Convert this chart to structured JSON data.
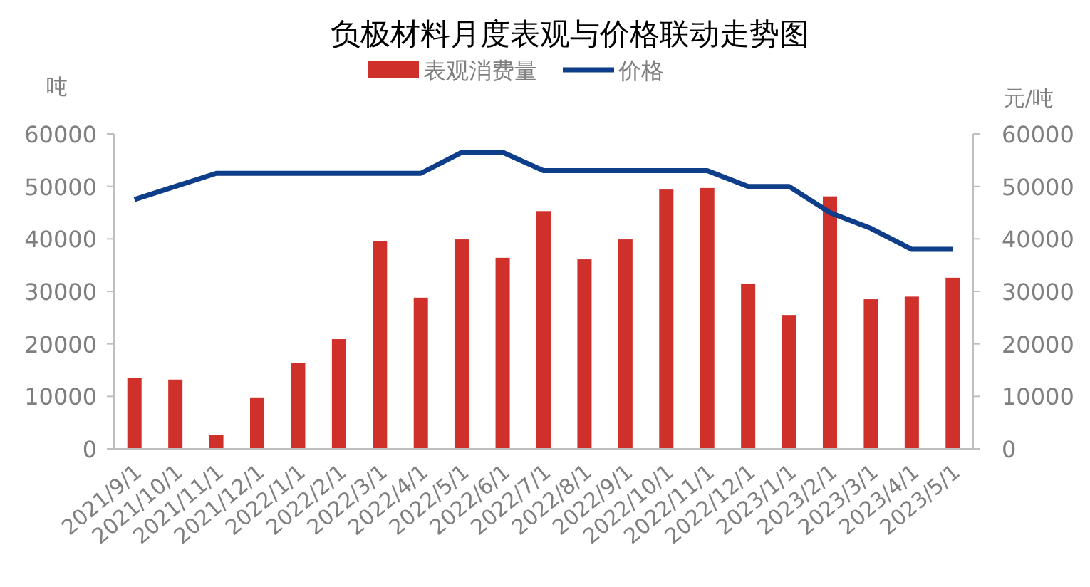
{
  "chart_data": {
    "type": "bar",
    "title": "负极材料月度表观与价格联动走势图",
    "ylabel": "吨",
    "y2label": "元/吨",
    "categories": [
      "2021/9/1",
      "2021/10/1",
      "2021/11/1",
      "2021/12/1",
      "2022/1/1",
      "2022/2/1",
      "2022/3/1",
      "2022/4/1",
      "2022/5/1",
      "2022/6/1",
      "2022/7/1",
      "2022/8/1",
      "2022/9/1",
      "2022/10/1",
      "2022/11/1",
      "2022/12/1",
      "2023/1/1",
      "2023/2/1",
      "2023/3/1",
      "2023/4/1",
      "2023/5/1"
    ],
    "series": [
      {
        "name": "表观消费量",
        "color": "#d0302a",
        "values": [
          13500,
          13200,
          2700,
          9800,
          16300,
          20900,
          39600,
          28800,
          39900,
          36400,
          45300,
          36100,
          39900,
          49400,
          49700,
          31500,
          25500,
          48100,
          28500,
          29000,
          32600
        ]
      },
      {
        "name": "价格",
        "type": "line",
        "axis": "y2",
        "color": "#0e3d8a",
        "values": [
          47500,
          50000,
          52500,
          52500,
          52500,
          52500,
          52500,
          52500,
          56500,
          56500,
          53000,
          53000,
          53000,
          53000,
          53000,
          50000,
          50000,
          45000,
          42000,
          38000,
          38000
        ]
      }
    ],
    "ylim": [
      0,
      60000
    ],
    "yticks": [
      0,
      10000,
      20000,
      30000,
      40000,
      50000,
      60000
    ],
    "y2lim": [
      0,
      60000
    ],
    "y2ticks": [
      0,
      10000,
      20000,
      30000,
      40000,
      50000,
      60000
    ],
    "grid": false,
    "legend": "top",
    "marker": "none",
    "line_style": "solid"
  }
}
